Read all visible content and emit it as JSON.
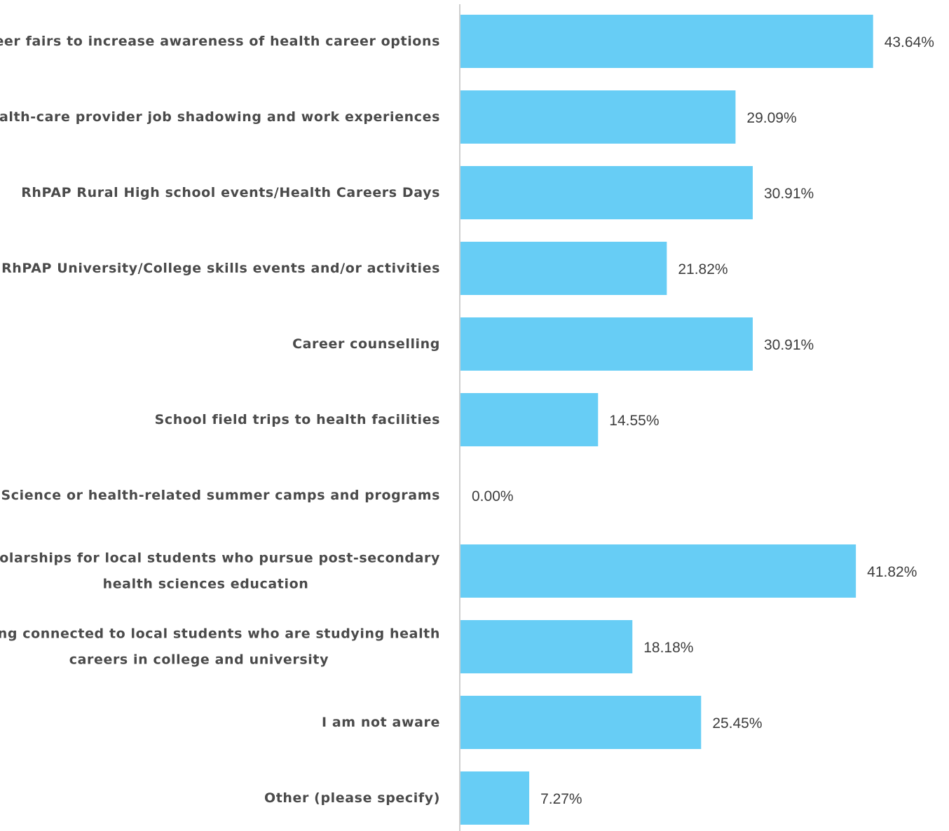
{
  "chart_data": {
    "type": "bar",
    "orientation": "horizontal",
    "categories": [
      [
        "Career fairs to increase awareness of health career options"
      ],
      [
        "Health-care provider job shadowing and work experiences"
      ],
      [
        "RhPAP Rural High school events/Health Careers Days"
      ],
      [
        "RhPAP University/College skills events and/or activities"
      ],
      [
        "Career counselling"
      ],
      [
        "School field trips to health facilities"
      ],
      [
        "Science or health-related summer camps and programs"
      ],
      [
        "Scholarships for local students who pursue post-secondary",
        "health sciences education"
      ],
      [
        "Staying connected to local students who are studying health",
        "careers in college and university"
      ],
      [
        "I am not aware"
      ],
      [
        "Other (please specify)"
      ]
    ],
    "values": [
      43.64,
      29.09,
      30.91,
      21.82,
      30.91,
      14.55,
      0.0,
      41.82,
      18.18,
      25.45,
      7.27
    ],
    "value_labels": [
      "43.64%",
      "29.09%",
      "30.91%",
      "21.82%",
      "30.91%",
      "14.55%",
      "0.00%",
      "41.82%",
      "18.18%",
      "25.45%",
      "7.27%"
    ],
    "xlim": [
      0,
      100
    ],
    "bar_color": "#67cdf5",
    "axis_color": "#cfcfcf",
    "grid": false,
    "legend": "none"
  }
}
